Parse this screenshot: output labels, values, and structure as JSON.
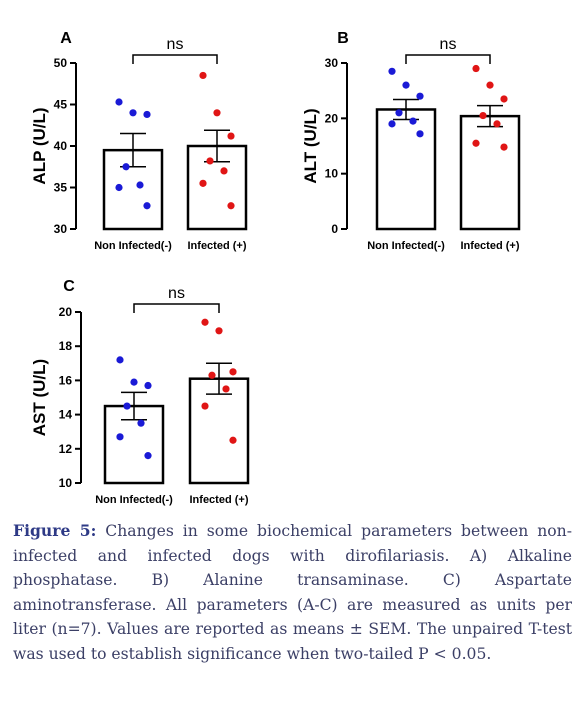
{
  "chart_data": [
    {
      "type": "bar",
      "panel": "A",
      "ylabel": "ALP (U/L)",
      "annotation": "ns",
      "categories": [
        "Non Infected(-)",
        "Infected (+)"
      ],
      "values": [
        39.5,
        40.0
      ],
      "errors": [
        2.0,
        1.9
      ],
      "points": [
        [
          45.3,
          44.0,
          43.8,
          37.5,
          35.3,
          35.0,
          32.8
        ],
        [
          48.5,
          44.0,
          41.2,
          38.2,
          37.0,
          35.5,
          32.8
        ]
      ],
      "colors": [
        "#1a1ad6",
        "#e01515"
      ],
      "ylim": [
        30,
        50
      ],
      "yticks": [
        30,
        35,
        40,
        45,
        50
      ]
    },
    {
      "type": "bar",
      "panel": "B",
      "ylabel": "ALT (U/L)",
      "annotation": "ns",
      "categories": [
        "Non Infected(-)",
        "Infected (+)"
      ],
      "values": [
        21.6,
        20.4
      ],
      "errors": [
        1.8,
        1.9
      ],
      "points": [
        [
          28.5,
          26.0,
          24.0,
          21.0,
          19.5,
          19.0,
          17.2
        ],
        [
          29.0,
          26.0,
          23.5,
          20.5,
          19.0,
          15.5,
          14.8
        ]
      ],
      "colors": [
        "#1a1ad6",
        "#e01515"
      ],
      "ylim": [
        0,
        30
      ],
      "yticks": [
        0,
        10,
        20,
        30
      ]
    },
    {
      "type": "bar",
      "panel": "C",
      "ylabel": "AST (U/L)",
      "annotation": "ns",
      "categories": [
        "Non Infected(-)",
        "Infected (+)"
      ],
      "values": [
        14.5,
        16.1
      ],
      "errors": [
        0.8,
        0.9
      ],
      "points": [
        [
          17.2,
          15.9,
          15.7,
          14.5,
          13.5,
          12.7,
          11.6
        ],
        [
          19.4,
          18.9,
          16.5,
          16.3,
          15.5,
          14.5,
          12.5
        ]
      ],
      "colors": [
        "#1a1ad6",
        "#e01515"
      ],
      "ylim": [
        10,
        20
      ],
      "yticks": [
        10,
        12,
        14,
        16,
        18,
        20
      ]
    }
  ],
  "caption": {
    "label": "Figure 5:",
    "text": "Changes in some biochemical parameters between non-infected and infected dogs with dirofilariasis. A) Alkaline phosphatase. B) Alanine transaminase. C) Aspartate aminotransferase. All parameters (A-C) are measured as units per liter (n=7). Values are reported as means ± SEM. The unpaired T-test was used to establish significance when two-tailed P < 0.05."
  }
}
